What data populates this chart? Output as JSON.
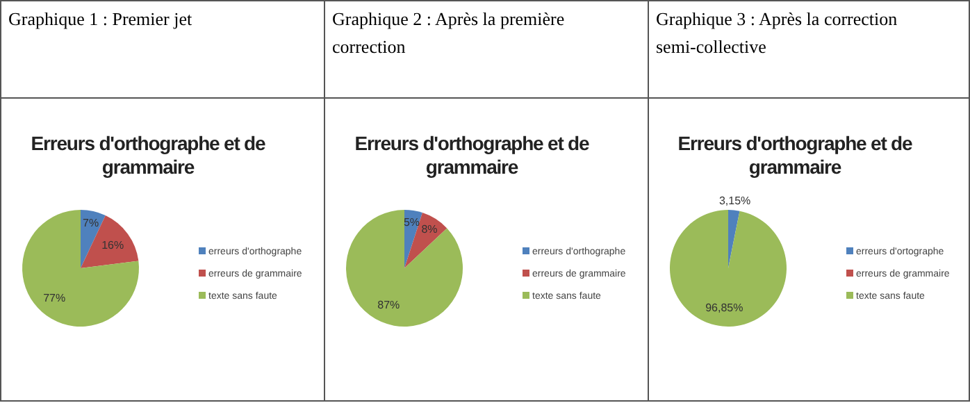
{
  "chart_data": [
    {
      "type": "pie",
      "subtitle": "Graphique 1 : Premier jet",
      "title": "Erreurs d'orthographe et de grammaire",
      "categories": [
        "erreurs d'orthographe",
        "erreurs de grammaire",
        "texte sans faute"
      ],
      "values": [
        7,
        16,
        77
      ],
      "value_labels": [
        "7%",
        "16%",
        "77%"
      ],
      "colors": [
        "#4f81bd",
        "#c0504d",
        "#9bbb59"
      ],
      "legend": "right"
    },
    {
      "type": "pie",
      "subtitle": "Graphique 2 : Après la première correction",
      "title": "Erreurs d'orthographe et de grammaire",
      "categories": [
        "erreurs d'orthographe",
        "erreurs de grammaire",
        "texte sans faute"
      ],
      "values": [
        5,
        8,
        87
      ],
      "value_labels": [
        "5%",
        "8%",
        "87%"
      ],
      "colors": [
        "#4f81bd",
        "#c0504d",
        "#9bbb59"
      ],
      "legend": "right"
    },
    {
      "type": "pie",
      "subtitle": "Graphique 3 : Après la correction semi-collective",
      "title": "Erreurs d'orthographe et de grammaire",
      "categories": [
        "erreurs d'ortographe",
        "erreurs de grammaire",
        "texte sans faute"
      ],
      "values": [
        3.15,
        0,
        96.85
      ],
      "value_labels": [
        "3,15%",
        null,
        "96,85%"
      ],
      "colors": [
        "#4f81bd",
        "#c0504d",
        "#9bbb59"
      ],
      "legend": "right"
    }
  ]
}
